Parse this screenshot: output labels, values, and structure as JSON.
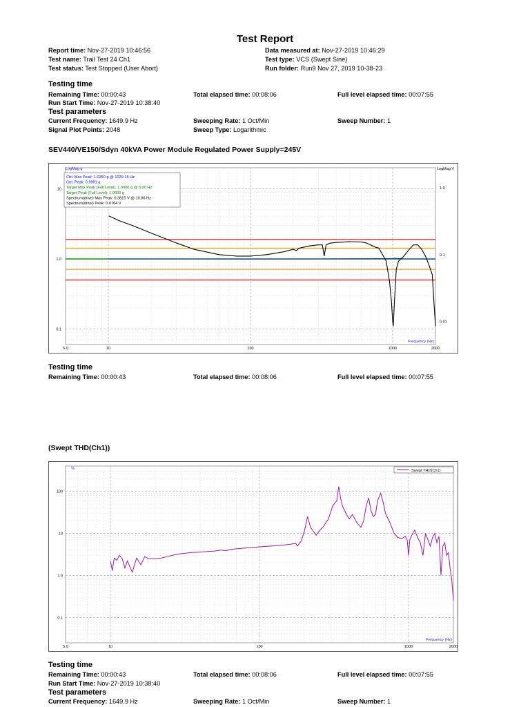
{
  "report": {
    "title": "Test Report",
    "report_time_label": "Report time:",
    "report_time": "Nov-27-2019 10:46:56",
    "data_measured_label": "Data measured at:",
    "data_measured": "Nov-27-2019 10:46:29",
    "test_name_label": "Test name:",
    "test_name": "Trail Test 24 Ch1",
    "test_type_label": "Test type:",
    "test_type": "VCS (Swept Sine)",
    "test_status_label": "Test status:",
    "test_status": "Test Stopped (User Abort)",
    "run_folder_label": "Run folder:",
    "run_folder": "Run9 Nov 27, 2019 10-38-23"
  },
  "testing_time": {
    "heading": "Testing time",
    "remaining_label": "Remaining Time:",
    "remaining": "00:00:43",
    "total_label": "Total elapsed time:",
    "total": "00:08:06",
    "full_label": "Full level elapsed time:",
    "full": "00:07:55",
    "run_start_label": "Run Start Time:",
    "run_start": "Nov-27-2019 10:38:40"
  },
  "test_parameters": {
    "heading": "Test parameters",
    "current_freq_label": "Current Frequency:",
    "current_freq": "1649.9 Hz",
    "sweep_rate_label": "Sweeping Rate:",
    "sweep_rate": "1 Oct/Min",
    "sweep_number_label": "Sweep Number:",
    "sweep_number": "1",
    "plot_points_label": "Signal Plot Points:",
    "plot_points": "2048",
    "sweep_type_label": "Sweep Type:",
    "sweep_type": "Logarithmic"
  },
  "section1_title": "SEV440/VE150/Sdyn 40kVA Power Module Regulated Power Supply=245V",
  "section2_title": "(Swept THD(Ch1))",
  "chart_data": [
    {
      "type": "line",
      "y_unit_left": "LogMag g",
      "y_unit_right": "LogMag V",
      "xlabel": "Frequency (Hz)",
      "x_scale": "log",
      "y_scale": "log",
      "xlim": [
        5.0,
        2000
      ],
      "ylim_left": [
        0.06,
        20
      ],
      "ylim_right": [
        0.0045,
        2.0
      ],
      "x_tick_labels": [
        "5.0",
        "10",
        "100",
        "1000",
        "2000"
      ],
      "y_tick_labels_left": [
        "10",
        "1.0",
        "0.1"
      ],
      "y_tick_labels_right": [
        "1.0",
        "0.1",
        "0.01"
      ],
      "legend": [
        {
          "text": "Ctrl. Max Peak: 1.0250 g @ 1029.15 Hz",
          "color": "#0000ff"
        },
        {
          "text": "Ctrl. Peak: 0.9991 g",
          "color": "#0000ff"
        },
        {
          "text": "Target Max Peak (Full Level): 1.0000 g @ 5.00 Hz",
          "color": "#008000"
        },
        {
          "text": "Target Peak (Full Level): 1.0000 g",
          "color": "#008000"
        },
        {
          "text": "Spectrum(drive) Max Peak: 0.3815 V @ 10.06 Hz",
          "color": "#000000"
        },
        {
          "text": "Spectrum(drive) Peak: 0.0764 V",
          "color": "#000000"
        }
      ],
      "reference_lines": [
        {
          "name": "abort high",
          "y": 1.9,
          "color": "#e82020"
        },
        {
          "name": "alarm high",
          "y": 1.42,
          "color": "#f0a020"
        },
        {
          "name": "target",
          "y": 1.0,
          "color": "#1a9a1a"
        },
        {
          "name": "alarm low",
          "y": 0.71,
          "color": "#f0a020"
        },
        {
          "name": "abort low",
          "y": 0.5,
          "color": "#e82020"
        }
      ],
      "series": [
        {
          "axis": "left",
          "color": "#2a2acc",
          "x": [
            10,
            30,
            100,
            300,
            1000,
            1029,
            1200,
            1500,
            2000
          ],
          "y": [
            1.0,
            1.0,
            0.995,
            1.0,
            1.01,
            1.025,
            1.0,
            1.0,
            0.995
          ]
        },
        {
          "axis": "right",
          "color": "#000000",
          "x": [
            10.06,
            12,
            15,
            20,
            30,
            40,
            60,
            80,
            100,
            130,
            170,
            200,
            210,
            220,
            260,
            300,
            320,
            330,
            340,
            360,
            400,
            500,
            600,
            650,
            700,
            750,
            800,
            900,
            950,
            980,
            1000,
            1010,
            1030,
            1060,
            1100,
            1200,
            1300,
            1400,
            1500,
            1600,
            1700,
            1800,
            1900,
            1950,
            2000
          ],
          "y": [
            0.3815,
            0.32,
            0.27,
            0.21,
            0.15,
            0.12,
            0.1,
            0.095,
            0.095,
            0.1,
            0.11,
            0.12,
            0.115,
            0.125,
            0.135,
            0.14,
            0.14,
            0.095,
            0.14,
            0.148,
            0.152,
            0.156,
            0.155,
            0.15,
            0.14,
            0.13,
            0.125,
            0.08,
            0.04,
            0.02,
            0.01,
            0.0085,
            0.02,
            0.06,
            0.08,
            0.095,
            0.118,
            0.14,
            0.14,
            0.12,
            0.095,
            0.07,
            0.05,
            0.02,
            0.0085
          ]
        }
      ]
    },
    {
      "type": "line",
      "y_unit_left": "%",
      "xlabel": "Frequency (Hz)",
      "x_scale": "log",
      "y_scale": "log",
      "xlim": [
        5.0,
        2000
      ],
      "ylim": [
        0.025,
        400
      ],
      "x_tick_labels": [
        "5.0",
        "10",
        "100",
        "1000",
        "2000"
      ],
      "y_tick_labels": [
        "100",
        "10",
        "1.0",
        "0.1"
      ],
      "legend": [
        {
          "text": "Swept THD(Ch1)",
          "color": "#9a1a9a"
        }
      ],
      "series": [
        {
          "name": "Swept THD(Ch1)",
          "color": "#9a1a9a",
          "x": [
            10,
            10.3,
            10.6,
            11,
            11.5,
            12,
            12.5,
            13,
            14,
            15,
            16,
            17,
            18,
            20,
            22,
            24,
            26,
            28,
            30,
            35,
            40,
            45,
            50,
            55,
            60,
            65,
            70,
            80,
            90,
            100,
            120,
            140,
            160,
            175,
            180,
            190,
            200,
            210,
            220,
            240,
            250,
            270,
            290,
            310,
            330,
            340,
            350,
            360,
            380,
            400,
            420,
            450,
            480,
            500,
            520,
            540,
            560,
            580,
            600,
            620,
            650,
            680,
            700,
            750,
            800,
            850,
            900,
            950,
            980,
            1000,
            1020,
            1050,
            1100,
            1150,
            1200,
            1250,
            1300,
            1400,
            1450,
            1500,
            1550,
            1600,
            1650,
            1700,
            1750,
            1800,
            1850,
            1900,
            1950,
            2000
          ],
          "y": [
            2.2,
            1.3,
            2.6,
            2.3,
            3.0,
            2.5,
            1.5,
            2.2,
            1.2,
            2.6,
            1.8,
            2.8,
            2.5,
            2.5,
            2.6,
            2.8,
            3.0,
            3.2,
            3.3,
            3.5,
            3.6,
            3.7,
            3.8,
            4.0,
            3.9,
            4.2,
            4.3,
            4.5,
            4.6,
            4.8,
            5.0,
            5.2,
            5.5,
            5.8,
            5.0,
            6.5,
            11.0,
            25.0,
            14.0,
            9.0,
            11.0,
            15.0,
            22.0,
            45.0,
            60.0,
            130.0,
            70.0,
            45.0,
            30.0,
            22.0,
            28.0,
            18.0,
            14.0,
            20.0,
            45.0,
            70.0,
            35.0,
            25.0,
            28.0,
            60.0,
            90.0,
            50.0,
            30.0,
            18.0,
            10.0,
            8.0,
            7.5,
            8.5,
            7.0,
            3.0,
            7.0,
            9.0,
            12.0,
            8.0,
            6.0,
            3.0,
            10.0,
            5.0,
            8.0,
            10.0,
            6.0,
            8.5,
            1.0,
            5.0,
            6.0,
            3.0,
            3.5,
            1.5,
            0.8,
            0.25
          ]
        }
      ]
    }
  ]
}
